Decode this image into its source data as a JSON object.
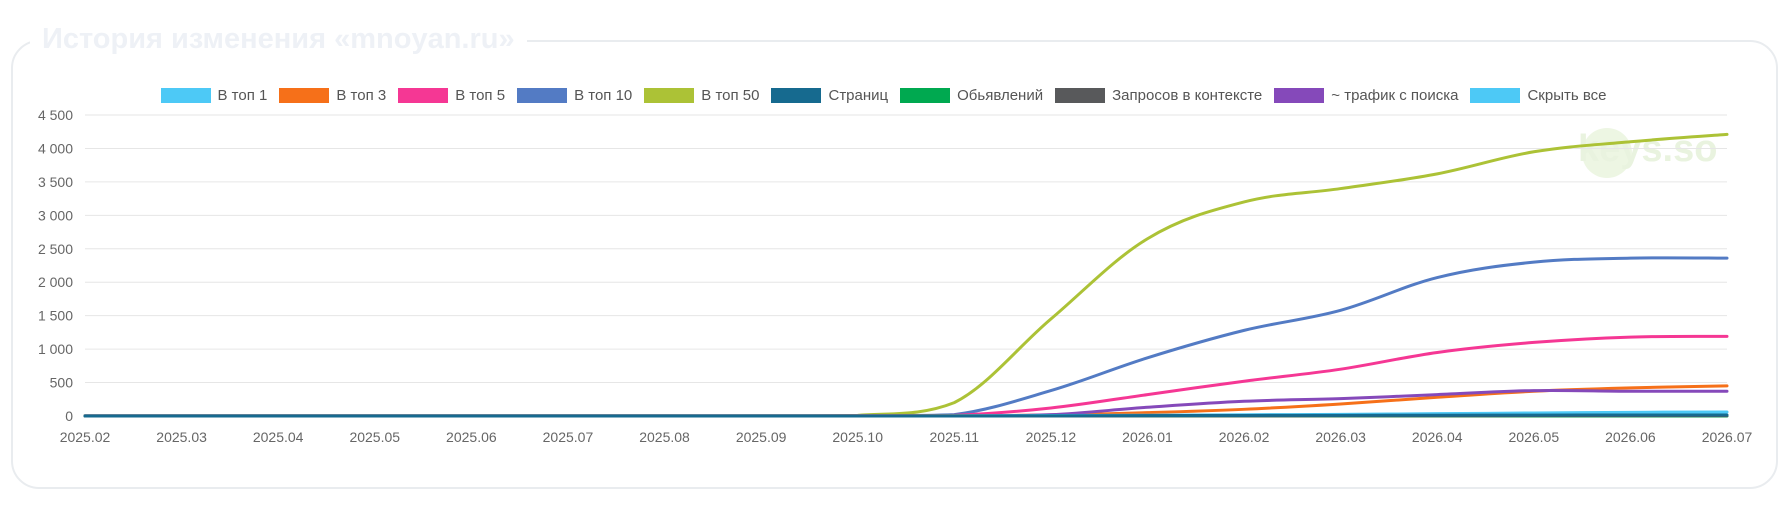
{
  "title": "История изменения «mnoyan.ru»",
  "watermark": "keys.so",
  "chart_data": {
    "type": "line",
    "x": [
      "2025.02",
      "2025.03",
      "2025.04",
      "2025.05",
      "2025.06",
      "2025.07",
      "2025.08",
      "2025.09",
      "2025.10",
      "2025.11",
      "2025.12",
      "2026.01",
      "2026.02",
      "2026.03",
      "2026.04",
      "2026.05",
      "2026.06",
      "2026.07"
    ],
    "ylim": [
      0,
      4500
    ],
    "yticks": [
      "0",
      "500",
      "1 000",
      "1 500",
      "2 000",
      "2 500",
      "3 000",
      "3 500",
      "4 000",
      "4 500"
    ],
    "ytick_values": [
      0,
      500,
      1000,
      1500,
      2000,
      2500,
      3000,
      3500,
      4000,
      4500
    ],
    "grid": true,
    "legend_position": "top",
    "series": [
      {
        "name": "В топ 1",
        "color": "#4dc9f6",
        "values": [
          2,
          2,
          2,
          2,
          2,
          2,
          2,
          2,
          2,
          3,
          8,
          12,
          18,
          25,
          35,
          45,
          55,
          60
        ]
      },
      {
        "name": "В топ 3",
        "color": "#f67019",
        "values": [
          2,
          2,
          2,
          2,
          2,
          2,
          2,
          2,
          3,
          5,
          15,
          50,
          100,
          180,
          280,
          370,
          420,
          450
        ]
      },
      {
        "name": "В топ 5",
        "color": "#f53794",
        "values": [
          2,
          2,
          2,
          2,
          2,
          2,
          2,
          2,
          4,
          10,
          120,
          320,
          520,
          700,
          950,
          1100,
          1180,
          1190
        ]
      },
      {
        "name": "В топ 10",
        "color": "#537bc4",
        "values": [
          3,
          3,
          3,
          3,
          3,
          3,
          3,
          3,
          5,
          20,
          380,
          870,
          1280,
          1580,
          2070,
          2300,
          2360,
          2360
        ]
      },
      {
        "name": "В топ 50",
        "color": "#acc236",
        "values": [
          3,
          3,
          3,
          3,
          3,
          3,
          3,
          3,
          10,
          200,
          1450,
          2650,
          3200,
          3400,
          3620,
          3950,
          4100,
          4210
        ]
      },
      {
        "name": "Страниц",
        "color": "#166a8f",
        "values": [
          0,
          0,
          0,
          0,
          0,
          0,
          0,
          0,
          0,
          0,
          2,
          5,
          8,
          10,
          12,
          14,
          15,
          15
        ]
      },
      {
        "name": "Обьявлений",
        "color": "#00a950",
        "values": [
          0,
          0,
          0,
          0,
          0,
          0,
          0,
          0,
          0,
          0,
          0,
          0,
          0,
          0,
          0,
          0,
          0,
          0
        ]
      },
      {
        "name": "Запросов в контексте",
        "color": "#58595b",
        "values": [
          0,
          0,
          0,
          0,
          0,
          0,
          0,
          0,
          0,
          0,
          0,
          1,
          2,
          3,
          4,
          5,
          6,
          6
        ]
      },
      {
        "name": "~ трафик с поиска",
        "color": "#8549ba",
        "values": [
          0,
          0,
          0,
          0,
          0,
          0,
          0,
          0,
          0,
          0,
          20,
          130,
          220,
          260,
          320,
          380,
          370,
          370
        ]
      }
    ],
    "hide_all_label": "Скрыть все",
    "hide_all_color": "#4dc9f6"
  }
}
